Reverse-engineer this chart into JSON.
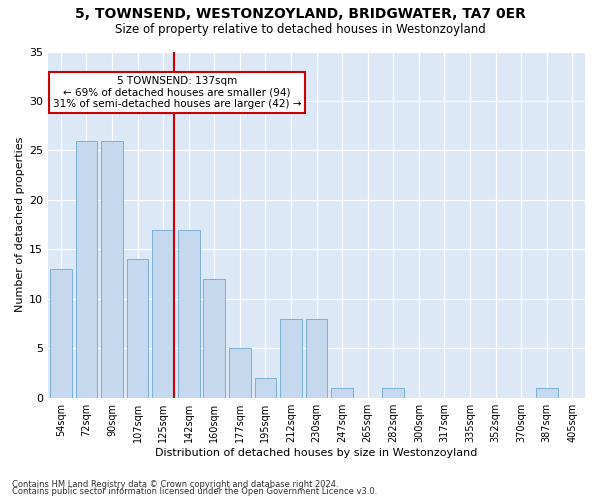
{
  "title": "5, TOWNSEND, WESTONZOYLAND, BRIDGWATER, TA7 0ER",
  "subtitle": "Size of property relative to detached houses in Westonzoyland",
  "xlabel": "Distribution of detached houses by size in Westonzoyland",
  "ylabel": "Number of detached properties",
  "bar_color": "#c5d8ee",
  "bar_edgecolor": "#7aafd4",
  "background_color": "#dce8f5",
  "categories": [
    "54sqm",
    "72sqm",
    "90sqm",
    "107sqm",
    "125sqm",
    "142sqm",
    "160sqm",
    "177sqm",
    "195sqm",
    "212sqm",
    "230sqm",
    "247sqm",
    "265sqm",
    "282sqm",
    "300sqm",
    "317sqm",
    "335sqm",
    "352sqm",
    "370sqm",
    "387sqm",
    "405sqm"
  ],
  "values": [
    13,
    26,
    26,
    14,
    17,
    17,
    12,
    5,
    2,
    8,
    8,
    1,
    0,
    1,
    0,
    0,
    0,
    0,
    0,
    1,
    0
  ],
  "ylim": [
    0,
    35
  ],
  "yticks": [
    0,
    5,
    10,
    15,
    20,
    25,
    30,
    35
  ],
  "line_color": "#cc0000",
  "annotation_text": "5 TOWNSEND: 137sqm\n← 69% of detached houses are smaller (94)\n31% of semi-detached houses are larger (42) →",
  "annotation_box_color": "#ffffff",
  "annotation_box_edgecolor": "#cc0000",
  "footer_line1": "Contains HM Land Registry data © Crown copyright and database right 2024.",
  "footer_line2": "Contains public sector information licensed under the Open Government Licence v3.0."
}
